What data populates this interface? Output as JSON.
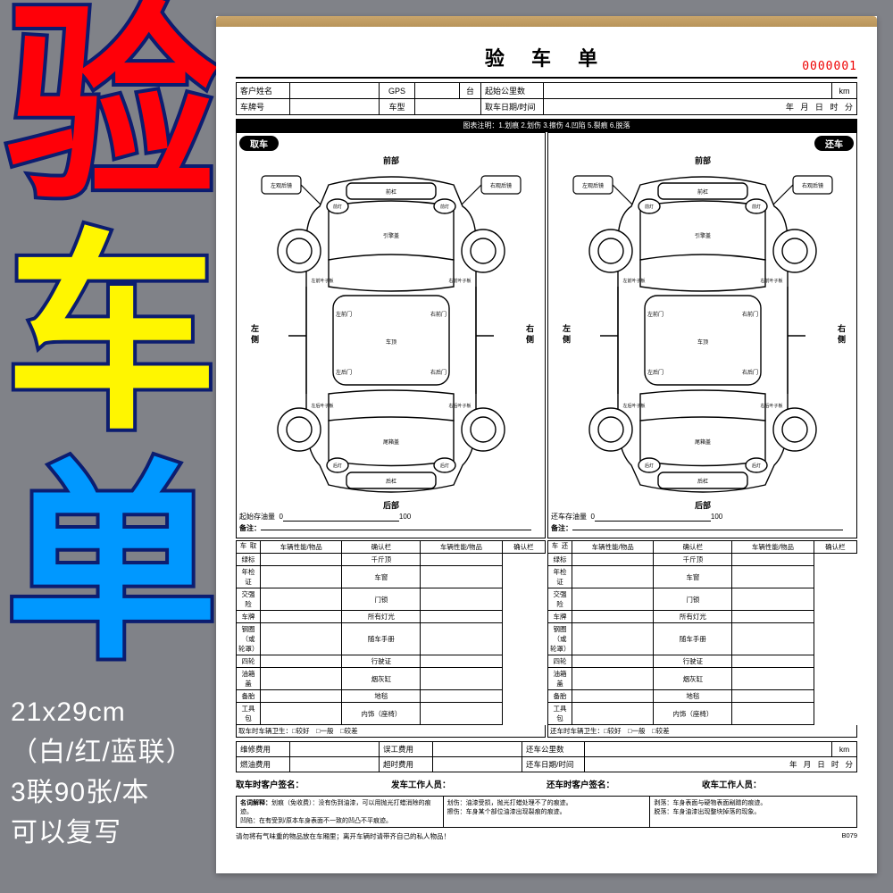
{
  "side": {
    "c1": "验",
    "c2": "车",
    "c3": "单",
    "info": [
      "21x29cm",
      "（白/红/蓝联）",
      "3联90张/本",
      "可以复写"
    ]
  },
  "title": "验 车 单",
  "serial": "0000001",
  "info": {
    "r1": {
      "a": "客户姓名",
      "b": "GPS",
      "c": "台",
      "d": "起始公里数",
      "e": "km"
    },
    "r2": {
      "a": "车牌号",
      "b": "车型",
      "c": "取车日期/时间",
      "d": "年",
      "e": "月",
      "f": "日",
      "g": "时",
      "h": "分"
    }
  },
  "legend": "图表注明：1.划痕 2.划伤 3.擦伤 4.凹陷 5.裂痕 6.脱落",
  "tags": {
    "take": "取车",
    "return": "还车"
  },
  "car": {
    "front": "前部",
    "rear": "后部",
    "left": "左\n侧",
    "right": "右\n侧",
    "lmirror": "左观后镜",
    "rmirror": "右观后镜",
    "fbumper": "前杠",
    "rbumper": "后杠",
    "headL": "前灯",
    "headR": "前灯",
    "hood": "引擎盖",
    "lff": "左前叶子板",
    "rff": "右前叶子板",
    "lfd": "左前门",
    "rfd": "右前门",
    "roof": "车顶",
    "lrd": "左后门",
    "rrd": "右后门",
    "lrf": "左后叶子板",
    "rrf": "右后叶子板",
    "trunk": "尾箱盖",
    "tailL": "后灯",
    "tailR": "后灯"
  },
  "fuel": {
    "take": "起始存油量",
    "return": "还车存油量",
    "zero": "0",
    "hundred": "100"
  },
  "remark": "备注：",
  "check": {
    "vhTake": "取 车",
    "vhReturn": "还 车",
    "h1": "车辆性能/物品",
    "h2": "确认栏",
    "h3": "车辆性能/物品",
    "h4": "确认栏",
    "rows": [
      [
        "绿标",
        "",
        "千斤顶",
        ""
      ],
      [
        "年检证",
        "",
        "车窗",
        ""
      ],
      [
        "交强险",
        "",
        "门锁",
        ""
      ],
      [
        "车牌",
        "",
        "所有灯光",
        ""
      ],
      [
        "钢圈（或轮罩）",
        "",
        "随车手册",
        ""
      ],
      [
        "四轮",
        "",
        "行驶证",
        ""
      ],
      [
        "油箱盖",
        "",
        "烟灰缸",
        ""
      ],
      [
        "备胎",
        "",
        "地毯",
        ""
      ],
      [
        "工具包",
        "",
        "内饰（座椅）",
        ""
      ]
    ]
  },
  "hyg": {
    "take": "取车时车辆卫生：",
    "return": "还车时车辆卫生：",
    "opts": "□较好　□一般　□较差"
  },
  "cost": {
    "r1": {
      "a": "维修费用",
      "b": "误工费用",
      "c": "还车公里数",
      "d": "km"
    },
    "r2": {
      "a": "燃油费用",
      "b": "超时费用",
      "c": "还车日期/时间",
      "d": "年",
      "e": "月",
      "f": "日",
      "g": "时",
      "h": "分"
    }
  },
  "sig": {
    "a": "取车时客户签名：",
    "b": "发车工作人员：",
    "c": "还车时客户签名：",
    "d": "收车工作人员："
  },
  "notes": {
    "a1": "名词解释：",
    "a2": "划痕（免收费）：没有伤到油漆，可以用抛光打蜡消除的痕迹。",
    "b1": "划伤：油漆受损，抛光打蜡处理不了的痕迹。",
    "b2": "擦伤：车身某个部位油漆出现裂痕的痕迹。",
    "c1": "剥落：车身表面与硬物表面剐蹭的痕迹。",
    "c2": "脱落：车身油漆出现整块掉落的现象。",
    "a3": "凹陷：在有受到/原本车身表面不一致的凹凸不平痕迹。"
  },
  "foot": {
    "a": "请勿将有气味重的物品放在车厢里；离开车辆时请带齐自己的私人物品！",
    "b": "B079"
  }
}
